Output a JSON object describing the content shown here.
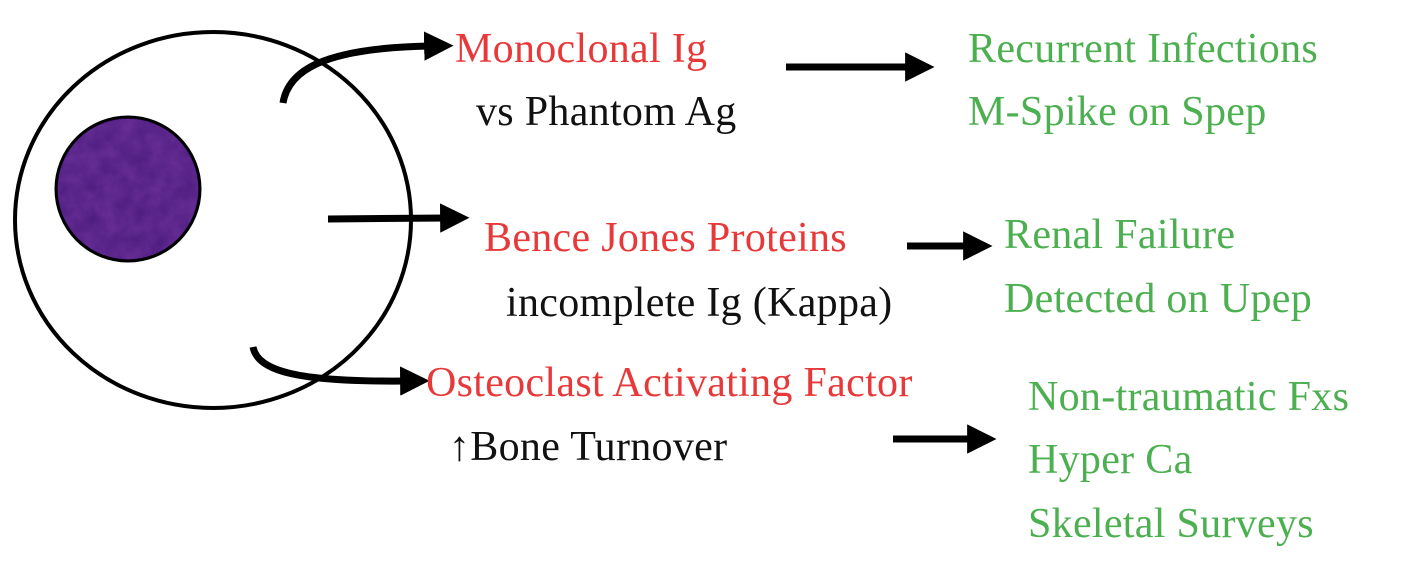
{
  "colors": {
    "cause": "#e8393a",
    "mechanism": "#111111",
    "effect": "#4caf50",
    "nucleus": "#4a1a7c",
    "outline": "#000000"
  },
  "cell": {
    "body_icon": "plasma-cell-icon",
    "nucleus_icon": "nucleus-icon"
  },
  "rows": [
    {
      "cause": "Monoclonal Ig",
      "detail": "vs Phantom Ag",
      "effects": [
        "Recurrent Infections",
        "M-Spike on Spep"
      ]
    },
    {
      "cause": "Bence Jones Proteins",
      "detail": "incomplete Ig (Kappa)",
      "effects": [
        "Renal Failure",
        "Detected on Upep"
      ]
    },
    {
      "cause": "Osteoclast Activating Factor",
      "detail": "↑Bone Turnover",
      "effects": [
        "Non-traumatic Fxs",
        "Hyper Ca",
        "Skeletal Surveys"
      ]
    }
  ]
}
